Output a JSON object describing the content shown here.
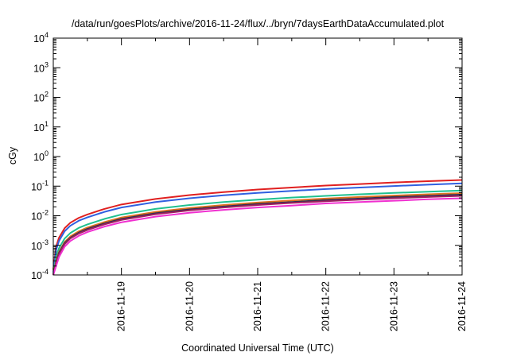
{
  "chart_data": {
    "type": "line",
    "title": "/data/run/goesPlots/archive/2016-11-24/flux/../bryn/7daysEarthDataAccumulated.plot",
    "xlabel": "Coordinated Universal Time (UTC)",
    "ylabel": "cGy",
    "x_axis_type": "date",
    "xlim": [
      "2016-11-18T00:00:00Z",
      "2016-11-24T00:00:00Z"
    ],
    "y_scale": "log",
    "ylim": [
      0.0001,
      10000
    ],
    "grid": false,
    "legend": "none",
    "x_ticks": [
      {
        "x": "2016-11-19T00:00:00Z",
        "label": "2016-11-19"
      },
      {
        "x": "2016-11-20T00:00:00Z",
        "label": "2016-11-20"
      },
      {
        "x": "2016-11-21T00:00:00Z",
        "label": "2016-11-21"
      },
      {
        "x": "2016-11-22T00:00:00Z",
        "label": "2016-11-22"
      },
      {
        "x": "2016-11-23T00:00:00Z",
        "label": "2016-11-23"
      },
      {
        "x": "2016-11-24T00:00:00Z",
        "label": "2016-11-24"
      }
    ],
    "y_ticks": [
      {
        "value": 0.0001,
        "base": "10",
        "exp": "-4"
      },
      {
        "value": 0.001,
        "base": "10",
        "exp": "-3"
      },
      {
        "value": 0.01,
        "base": "10",
        "exp": "-2"
      },
      {
        "value": 0.1,
        "base": "10",
        "exp": "-1"
      },
      {
        "value": 1,
        "base": "10",
        "exp": "0"
      },
      {
        "value": 10,
        "base": "10",
        "exp": "1"
      },
      {
        "value": 100,
        "base": "10",
        "exp": "2"
      },
      {
        "value": 1000,
        "base": "10",
        "exp": "3"
      },
      {
        "value": 10000,
        "base": "10",
        "exp": "4"
      }
    ],
    "series": [
      {
        "color": "#e02020",
        "values": [
          [
            "2016-11-18T00:00:00Z",
            0.00015
          ],
          [
            "2016-11-18T01:00:00Z",
            0.0009
          ],
          [
            "2016-11-18T02:00:00Z",
            0.0018
          ],
          [
            "2016-11-18T04:00:00Z",
            0.0038
          ],
          [
            "2016-11-18T06:00:00Z",
            0.0058
          ],
          [
            "2016-11-18T09:00:00Z",
            0.0085
          ],
          [
            "2016-11-18T12:00:00Z",
            0.011
          ],
          [
            "2016-11-18T18:00:00Z",
            0.017
          ],
          [
            "2016-11-19T00:00:00Z",
            0.024
          ],
          [
            "2016-11-19T12:00:00Z",
            0.037
          ],
          [
            "2016-11-20T00:00:00Z",
            0.05
          ],
          [
            "2016-11-20T12:00:00Z",
            0.063
          ],
          [
            "2016-11-21T00:00:00Z",
            0.077
          ],
          [
            "2016-11-21T12:00:00Z",
            0.09
          ],
          [
            "2016-11-22T00:00:00Z",
            0.105
          ],
          [
            "2016-11-22T12:00:00Z",
            0.118
          ],
          [
            "2016-11-23T00:00:00Z",
            0.133
          ],
          [
            "2016-11-23T12:00:00Z",
            0.147
          ],
          [
            "2016-11-24T00:00:00Z",
            0.162
          ]
        ]
      },
      {
        "color": "#3060e0",
        "values": [
          [
            "2016-11-18T00:00:00Z",
            0.00012
          ],
          [
            "2016-11-18T01:00:00Z",
            0.0007
          ],
          [
            "2016-11-18T02:00:00Z",
            0.0014
          ],
          [
            "2016-11-18T04:00:00Z",
            0.003
          ],
          [
            "2016-11-18T06:00:00Z",
            0.0046
          ],
          [
            "2016-11-18T09:00:00Z",
            0.0068
          ],
          [
            "2016-11-18T12:00:00Z",
            0.0088
          ],
          [
            "2016-11-18T18:00:00Z",
            0.0135
          ],
          [
            "2016-11-19T00:00:00Z",
            0.019
          ],
          [
            "2016-11-19T12:00:00Z",
            0.029
          ],
          [
            "2016-11-20T00:00:00Z",
            0.039
          ],
          [
            "2016-11-20T12:00:00Z",
            0.049
          ],
          [
            "2016-11-21T00:00:00Z",
            0.059
          ],
          [
            "2016-11-21T12:00:00Z",
            0.069
          ],
          [
            "2016-11-22T00:00:00Z",
            0.08
          ],
          [
            "2016-11-22T12:00:00Z",
            0.09
          ],
          [
            "2016-11-23T00:00:00Z",
            0.101
          ],
          [
            "2016-11-23T12:00:00Z",
            0.112
          ],
          [
            "2016-11-24T00:00:00Z",
            0.124
          ]
        ]
      },
      {
        "color": "#20c090",
        "values": [
          [
            "2016-11-18T00:00:00Z",
            0.0001
          ],
          [
            "2016-11-18T01:00:00Z",
            0.0004
          ],
          [
            "2016-11-18T02:00:00Z",
            0.0008
          ],
          [
            "2016-11-18T04:00:00Z",
            0.0017
          ],
          [
            "2016-11-18T06:00:00Z",
            0.0026
          ],
          [
            "2016-11-18T09:00:00Z",
            0.0039
          ],
          [
            "2016-11-18T12:00:00Z",
            0.0051
          ],
          [
            "2016-11-18T18:00:00Z",
            0.0078
          ],
          [
            "2016-11-19T00:00:00Z",
            0.011
          ],
          [
            "2016-11-19T12:00:00Z",
            0.017
          ],
          [
            "2016-11-20T00:00:00Z",
            0.023
          ],
          [
            "2016-11-20T12:00:00Z",
            0.029
          ],
          [
            "2016-11-21T00:00:00Z",
            0.035
          ],
          [
            "2016-11-21T12:00:00Z",
            0.041
          ],
          [
            "2016-11-22T00:00:00Z",
            0.047
          ],
          [
            "2016-11-22T12:00:00Z",
            0.053
          ],
          [
            "2016-11-23T00:00:00Z",
            0.059
          ],
          [
            "2016-11-23T12:00:00Z",
            0.065
          ],
          [
            "2016-11-24T00:00:00Z",
            0.071
          ]
        ]
      },
      {
        "color": "#e07020",
        "values": [
          [
            "2016-11-18T00:00:00Z",
            0.0001
          ],
          [
            "2016-11-18T01:00:00Z",
            0.0003
          ],
          [
            "2016-11-18T02:00:00Z",
            0.0006
          ],
          [
            "2016-11-18T04:00:00Z",
            0.0013
          ],
          [
            "2016-11-18T06:00:00Z",
            0.002
          ],
          [
            "2016-11-18T09:00:00Z",
            0.003
          ],
          [
            "2016-11-18T12:00:00Z",
            0.004
          ],
          [
            "2016-11-18T18:00:00Z",
            0.0061
          ],
          [
            "2016-11-19T00:00:00Z",
            0.0087
          ],
          [
            "2016-11-19T12:00:00Z",
            0.0135
          ],
          [
            "2016-11-20T00:00:00Z",
            0.0183
          ],
          [
            "2016-11-20T12:00:00Z",
            0.023
          ],
          [
            "2016-11-21T00:00:00Z",
            0.028
          ],
          [
            "2016-11-21T12:00:00Z",
            0.033
          ],
          [
            "2016-11-22T00:00:00Z",
            0.038
          ],
          [
            "2016-11-22T12:00:00Z",
            0.043
          ],
          [
            "2016-11-23T00:00:00Z",
            0.048
          ],
          [
            "2016-11-23T12:00:00Z",
            0.053
          ],
          [
            "2016-11-24T00:00:00Z",
            0.058
          ]
        ]
      },
      {
        "color": "#303050",
        "values": [
          [
            "2016-11-18T00:00:00Z",
            0.0001
          ],
          [
            "2016-11-18T01:00:00Z",
            0.00027
          ],
          [
            "2016-11-18T02:00:00Z",
            0.00055
          ],
          [
            "2016-11-18T04:00:00Z",
            0.0012
          ],
          [
            "2016-11-18T06:00:00Z",
            0.0018
          ],
          [
            "2016-11-18T09:00:00Z",
            0.0027
          ],
          [
            "2016-11-18T12:00:00Z",
            0.0036
          ],
          [
            "2016-11-18T18:00:00Z",
            0.0055
          ],
          [
            "2016-11-19T00:00:00Z",
            0.0078
          ],
          [
            "2016-11-19T12:00:00Z",
            0.0121
          ],
          [
            "2016-11-20T00:00:00Z",
            0.0164
          ],
          [
            "2016-11-20T12:00:00Z",
            0.0205
          ],
          [
            "2016-11-21T00:00:00Z",
            0.025
          ],
          [
            "2016-11-21T12:00:00Z",
            0.029
          ],
          [
            "2016-11-22T00:00:00Z",
            0.034
          ],
          [
            "2016-11-22T12:00:00Z",
            0.038
          ],
          [
            "2016-11-23T00:00:00Z",
            0.043
          ],
          [
            "2016-11-23T12:00:00Z",
            0.047
          ],
          [
            "2016-11-24T00:00:00Z",
            0.052
          ]
        ]
      },
      {
        "color": "#a02060",
        "values": [
          [
            "2016-11-18T00:00:00Z",
            0.0001
          ],
          [
            "2016-11-18T01:00:00Z",
            0.00025
          ],
          [
            "2016-11-18T02:00:00Z",
            0.0005
          ],
          [
            "2016-11-18T04:00:00Z",
            0.0011
          ],
          [
            "2016-11-18T06:00:00Z",
            0.0017
          ],
          [
            "2016-11-18T09:00:00Z",
            0.0025
          ],
          [
            "2016-11-18T12:00:00Z",
            0.0033
          ],
          [
            "2016-11-18T18:00:00Z",
            0.0051
          ],
          [
            "2016-11-19T00:00:00Z",
            0.0072
          ],
          [
            "2016-11-19T12:00:00Z",
            0.0112
          ],
          [
            "2016-11-20T00:00:00Z",
            0.0152
          ],
          [
            "2016-11-20T12:00:00Z",
            0.019
          ],
          [
            "2016-11-21T00:00:00Z",
            0.023
          ],
          [
            "2016-11-21T12:00:00Z",
            0.027
          ],
          [
            "2016-11-22T00:00:00Z",
            0.031
          ],
          [
            "2016-11-22T12:00:00Z",
            0.035
          ],
          [
            "2016-11-23T00:00:00Z",
            0.039
          ],
          [
            "2016-11-23T12:00:00Z",
            0.043
          ],
          [
            "2016-11-24T00:00:00Z",
            0.047
          ]
        ]
      },
      {
        "color": "#f030d0",
        "values": [
          [
            "2016-11-18T00:00:00Z",
            0.0001
          ],
          [
            "2016-11-18T01:00:00Z",
            0.0002
          ],
          [
            "2016-11-18T02:00:00Z",
            0.0004
          ],
          [
            "2016-11-18T04:00:00Z",
            0.0009
          ],
          [
            "2016-11-18T06:00:00Z",
            0.0014
          ],
          [
            "2016-11-18T09:00:00Z",
            0.0021
          ],
          [
            "2016-11-18T12:00:00Z",
            0.0028
          ],
          [
            "2016-11-18T18:00:00Z",
            0.0043
          ],
          [
            "2016-11-19T00:00:00Z",
            0.006
          ],
          [
            "2016-11-19T12:00:00Z",
            0.0093
          ],
          [
            "2016-11-20T00:00:00Z",
            0.0126
          ],
          [
            "2016-11-20T12:00:00Z",
            0.0158
          ],
          [
            "2016-11-21T00:00:00Z",
            0.019
          ],
          [
            "2016-11-21T12:00:00Z",
            0.022
          ],
          [
            "2016-11-22T00:00:00Z",
            0.026
          ],
          [
            "2016-11-22T12:00:00Z",
            0.029
          ],
          [
            "2016-11-23T00:00:00Z",
            0.032
          ],
          [
            "2016-11-23T12:00:00Z",
            0.036
          ],
          [
            "2016-11-24T00:00:00Z",
            0.039
          ]
        ]
      }
    ]
  }
}
